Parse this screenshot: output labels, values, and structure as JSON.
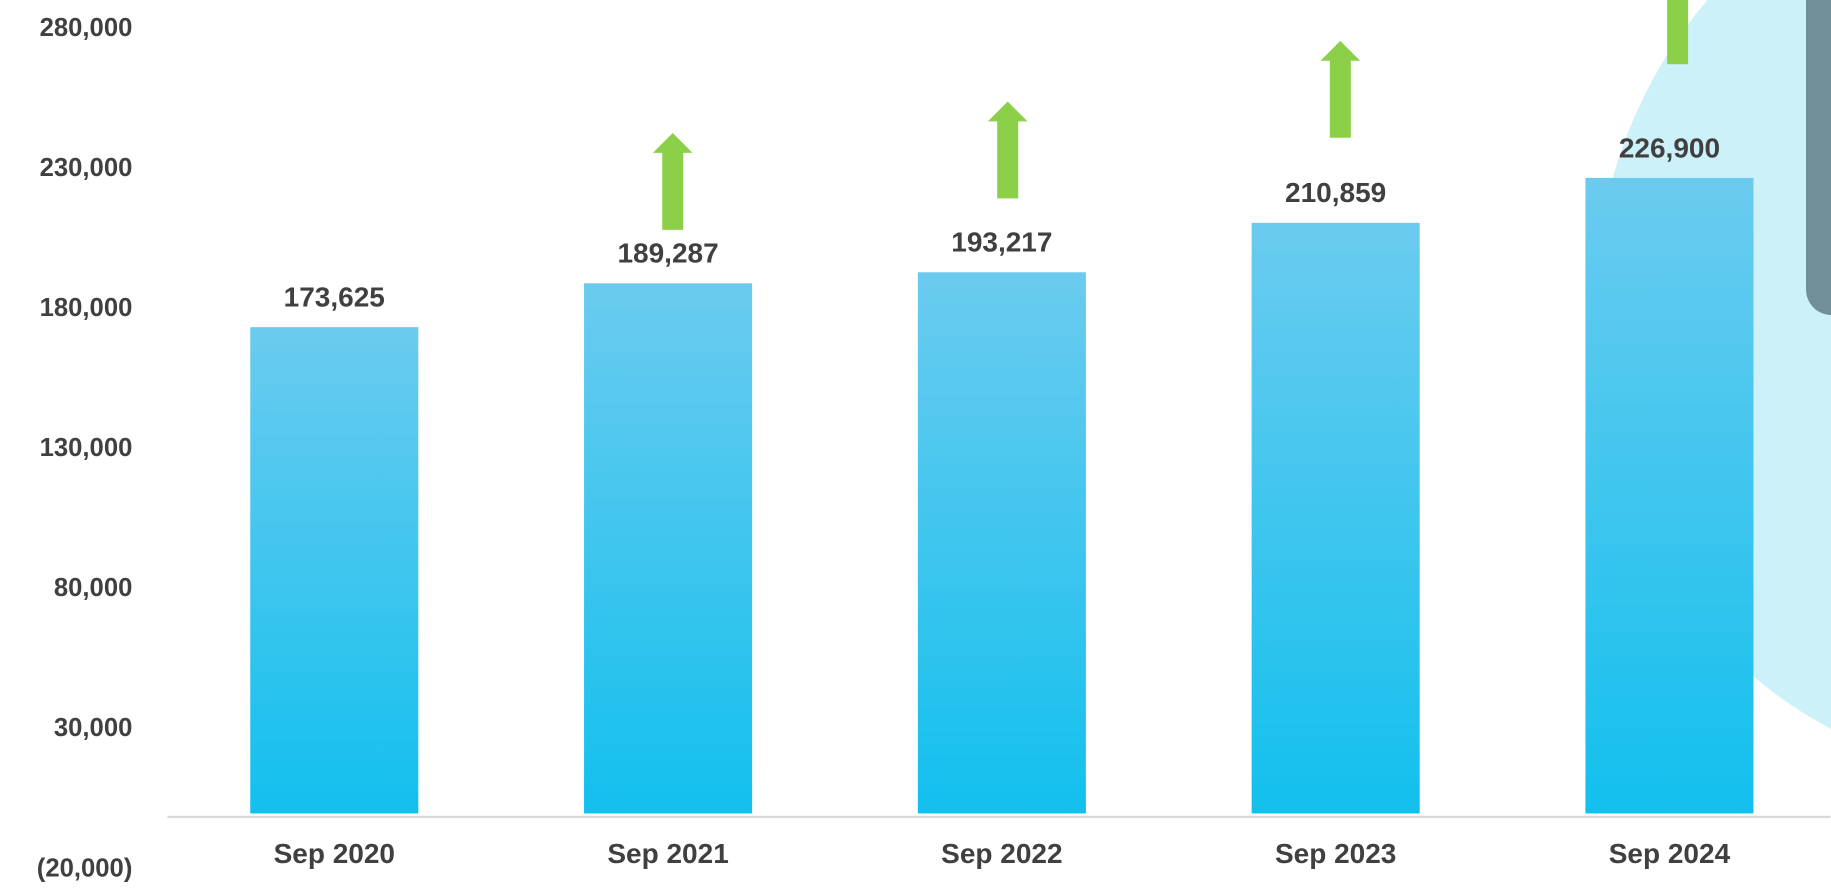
{
  "chart_data": {
    "type": "bar",
    "categories": [
      "Sep 2020",
      "Sep 2021",
      "Sep 2022",
      "Sep 2023",
      "Sep 2024"
    ],
    "values": [
      173625,
      189287,
      193217,
      210859,
      226900
    ],
    "value_labels": [
      "173,625",
      "189,287",
      "193,217",
      "210,859",
      "226,900"
    ],
    "color": "#3cc6f0",
    "ylim": [
      -20000,
      280000
    ],
    "yticks": [
      {
        "value": -20000,
        "label": "(20,000)"
      },
      {
        "value": 30000,
        "label": "30,000"
      },
      {
        "value": 80000,
        "label": "80,000"
      },
      {
        "value": 130000,
        "label": "130,000"
      },
      {
        "value": 180000,
        "label": "180,000"
      },
      {
        "value": 230000,
        "label": "230,000"
      },
      {
        "value": 280000,
        "label": "280,000"
      }
    ],
    "grid": false
  }
}
